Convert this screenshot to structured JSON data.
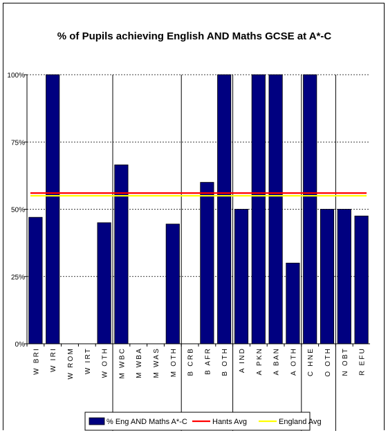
{
  "chart_data": {
    "type": "bar",
    "title": "% of Pupils achieving English AND Maths GCSE at A*-C",
    "xlabel": "",
    "ylabel": "",
    "ylim": [
      0,
      1
    ],
    "yticks": [
      "0%",
      "25%",
      "50%",
      "75%",
      "100%"
    ],
    "categories": [
      "W BRI",
      "W IRI",
      "W ROM",
      "W IRT",
      "W OTH",
      "M WBC",
      "M WBA",
      "M WAS",
      "M OTH",
      "B CRB",
      "B AFR",
      "B OTH",
      "A IND",
      "A PKN",
      "A BAN",
      "A OTH",
      "C HNE",
      "O OTH",
      "N OBT",
      "R EFU"
    ],
    "category_labels": [
      "WBRI",
      "WIRI",
      "WROM",
      "WIRT",
      "WOTH",
      "MWBC",
      "MWBA",
      "MWAS",
      "MOTH",
      "BCRB",
      "BAFR",
      "BOTH",
      "AIND",
      "APKN",
      "ABAN",
      "AOTH",
      "CHNE",
      "OOTH",
      "NOBT",
      "REFU"
    ],
    "group_dividers_after": [
      4,
      8,
      11,
      15,
      17
    ],
    "series": [
      {
        "name": "% Eng AND Maths A*-C",
        "type": "bar",
        "color": "#000080",
        "values": [
          0.47,
          1.0,
          null,
          null,
          0.45,
          0.665,
          null,
          null,
          0.445,
          null,
          0.6,
          1.0,
          0.5,
          1.0,
          1.0,
          0.3,
          1.0,
          0.5,
          0.5,
          0.475
        ]
      },
      {
        "name": "Hants Avg",
        "type": "line",
        "color": "#ff0000",
        "value": 0.56
      },
      {
        "name": "England Avg",
        "type": "line",
        "color": "#ffff00",
        "value": 0.55
      }
    ],
    "grid": "horizontal dashed",
    "legend_position": "bottom"
  }
}
